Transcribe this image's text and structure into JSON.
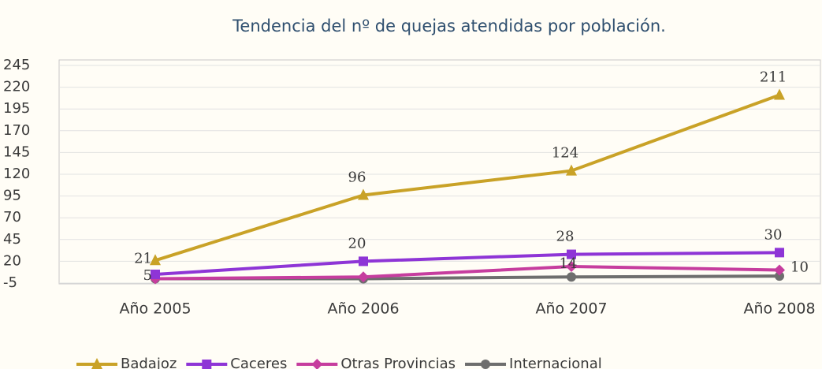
{
  "chart_data": {
    "type": "line",
    "title": "Tendencia del nº de quejas atendidas por población.",
    "categories": [
      "Año 2005",
      "Año 2006",
      "Año 2007",
      "Año 2008"
    ],
    "series": [
      {
        "name": "Badajoz",
        "color": "#c9a227",
        "marker": "triangle",
        "values": [
          21,
          96,
          124,
          211
        ],
        "data_labels": true
      },
      {
        "name": "Caceres",
        "color": "#8e35d6",
        "marker": "square",
        "values": [
          5,
          20,
          28,
          30
        ],
        "data_labels": true
      },
      {
        "name": "Otras Provincias",
        "color": "#c63d9e",
        "marker": "diamond",
        "values": [
          0,
          2,
          14,
          10
        ],
        "value_labels": [
          null,
          null,
          "14",
          "10"
        ]
      },
      {
        "name": "Internacional",
        "color": "#6e6e6e",
        "marker": "circle",
        "values": [
          0,
          0,
          2,
          3
        ]
      }
    ],
    "ylim": [
      -5,
      245
    ],
    "yticks": [
      -5,
      20,
      45,
      70,
      95,
      120,
      145,
      170,
      195,
      220,
      245
    ],
    "grid": true,
    "legend": "bottom"
  }
}
